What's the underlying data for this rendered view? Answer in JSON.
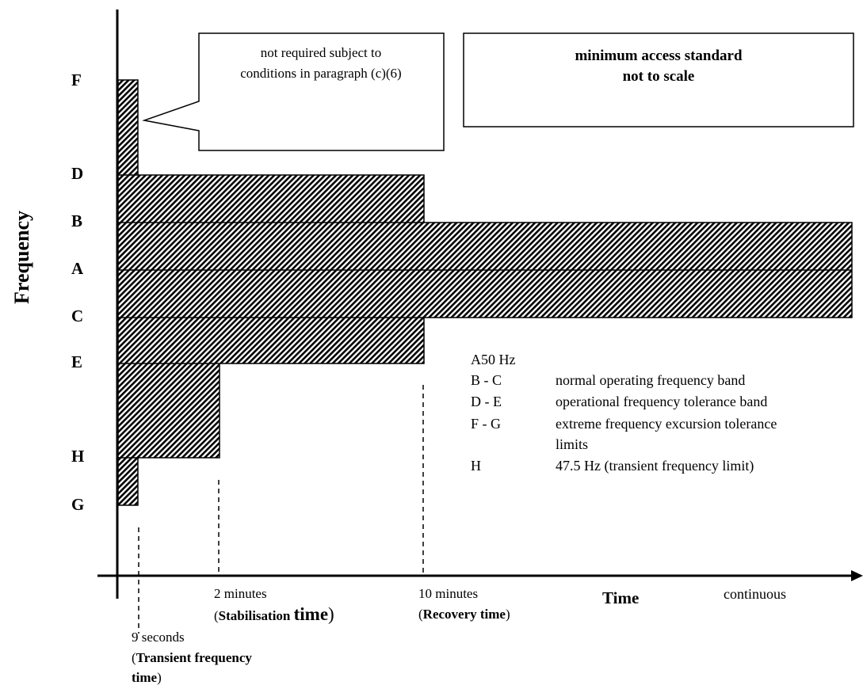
{
  "y_axis_label": "Frequency",
  "x_axis_label": "Time",
  "frequency_levels": [
    "F",
    "D",
    "B",
    "A",
    "C",
    "E",
    "H",
    "G"
  ],
  "callout": {
    "line1": "not required subject to",
    "line2": "conditions in paragraph (c)(6)"
  },
  "note_box": {
    "line1": "minimum access standard",
    "line2": "not to scale"
  },
  "legend": {
    "a_line": "A50 Hz",
    "rows": [
      {
        "key": "B - C",
        "desc": "normal operating frequency band"
      },
      {
        "key": "D - E",
        "desc": "operational frequency tolerance band"
      },
      {
        "key": "F - G",
        "desc": "extreme frequency excursion tolerance",
        "desc2": "limits"
      },
      {
        "key": "H",
        "desc": "47.5 Hz (transient frequency limit)"
      }
    ]
  },
  "time_marks": {
    "nine_seconds": {
      "line1": "9 seconds",
      "line2_paren": "(",
      "line2_bold": "Transient frequency",
      "line3_bold": "time",
      "line3_paren": ")"
    },
    "two_minutes": {
      "line1": "2 minutes",
      "line2_open": "(",
      "line2_bold": "Stabilisation",
      "line2_big": "time",
      "line2_close": ")"
    },
    "ten_minutes": {
      "line1": "10 minutes",
      "line2_open": "(",
      "line2_bold": "Recovery time",
      "line2_close": ")"
    },
    "continuous": "continuous"
  }
}
